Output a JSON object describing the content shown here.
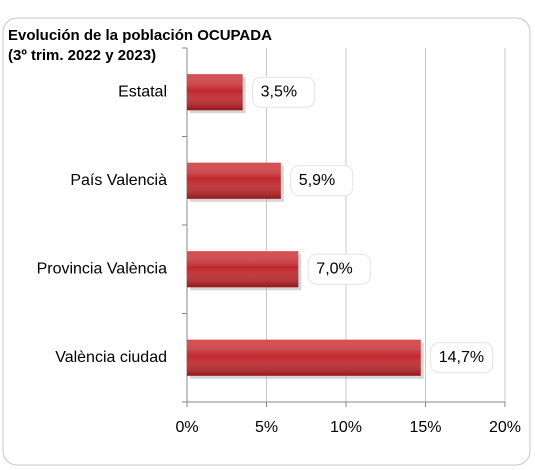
{
  "chart_data": {
    "type": "bar",
    "orientation": "horizontal",
    "title": "Evolución de la población OCUPADA",
    "subtitle": "(3º trim. 2022 y 2023)",
    "categories": [
      "Estatal",
      "País Valencià",
      "Provincia València",
      "València ciudad"
    ],
    "values": [
      3.5,
      5.9,
      7.0,
      14.7
    ],
    "value_labels": [
      "3,5%",
      "5,9%",
      "7,0%",
      "14,7%"
    ],
    "color": "#c0272d",
    "xlim": [
      0,
      20
    ],
    "xticks": [
      {
        "value": 0,
        "label": "0%"
      },
      {
        "value": 5,
        "label": "5%"
      },
      {
        "value": 10,
        "label": "10%"
      },
      {
        "value": 15,
        "label": "15%"
      },
      {
        "value": 20,
        "label": "20%"
      }
    ],
    "grid": true
  }
}
